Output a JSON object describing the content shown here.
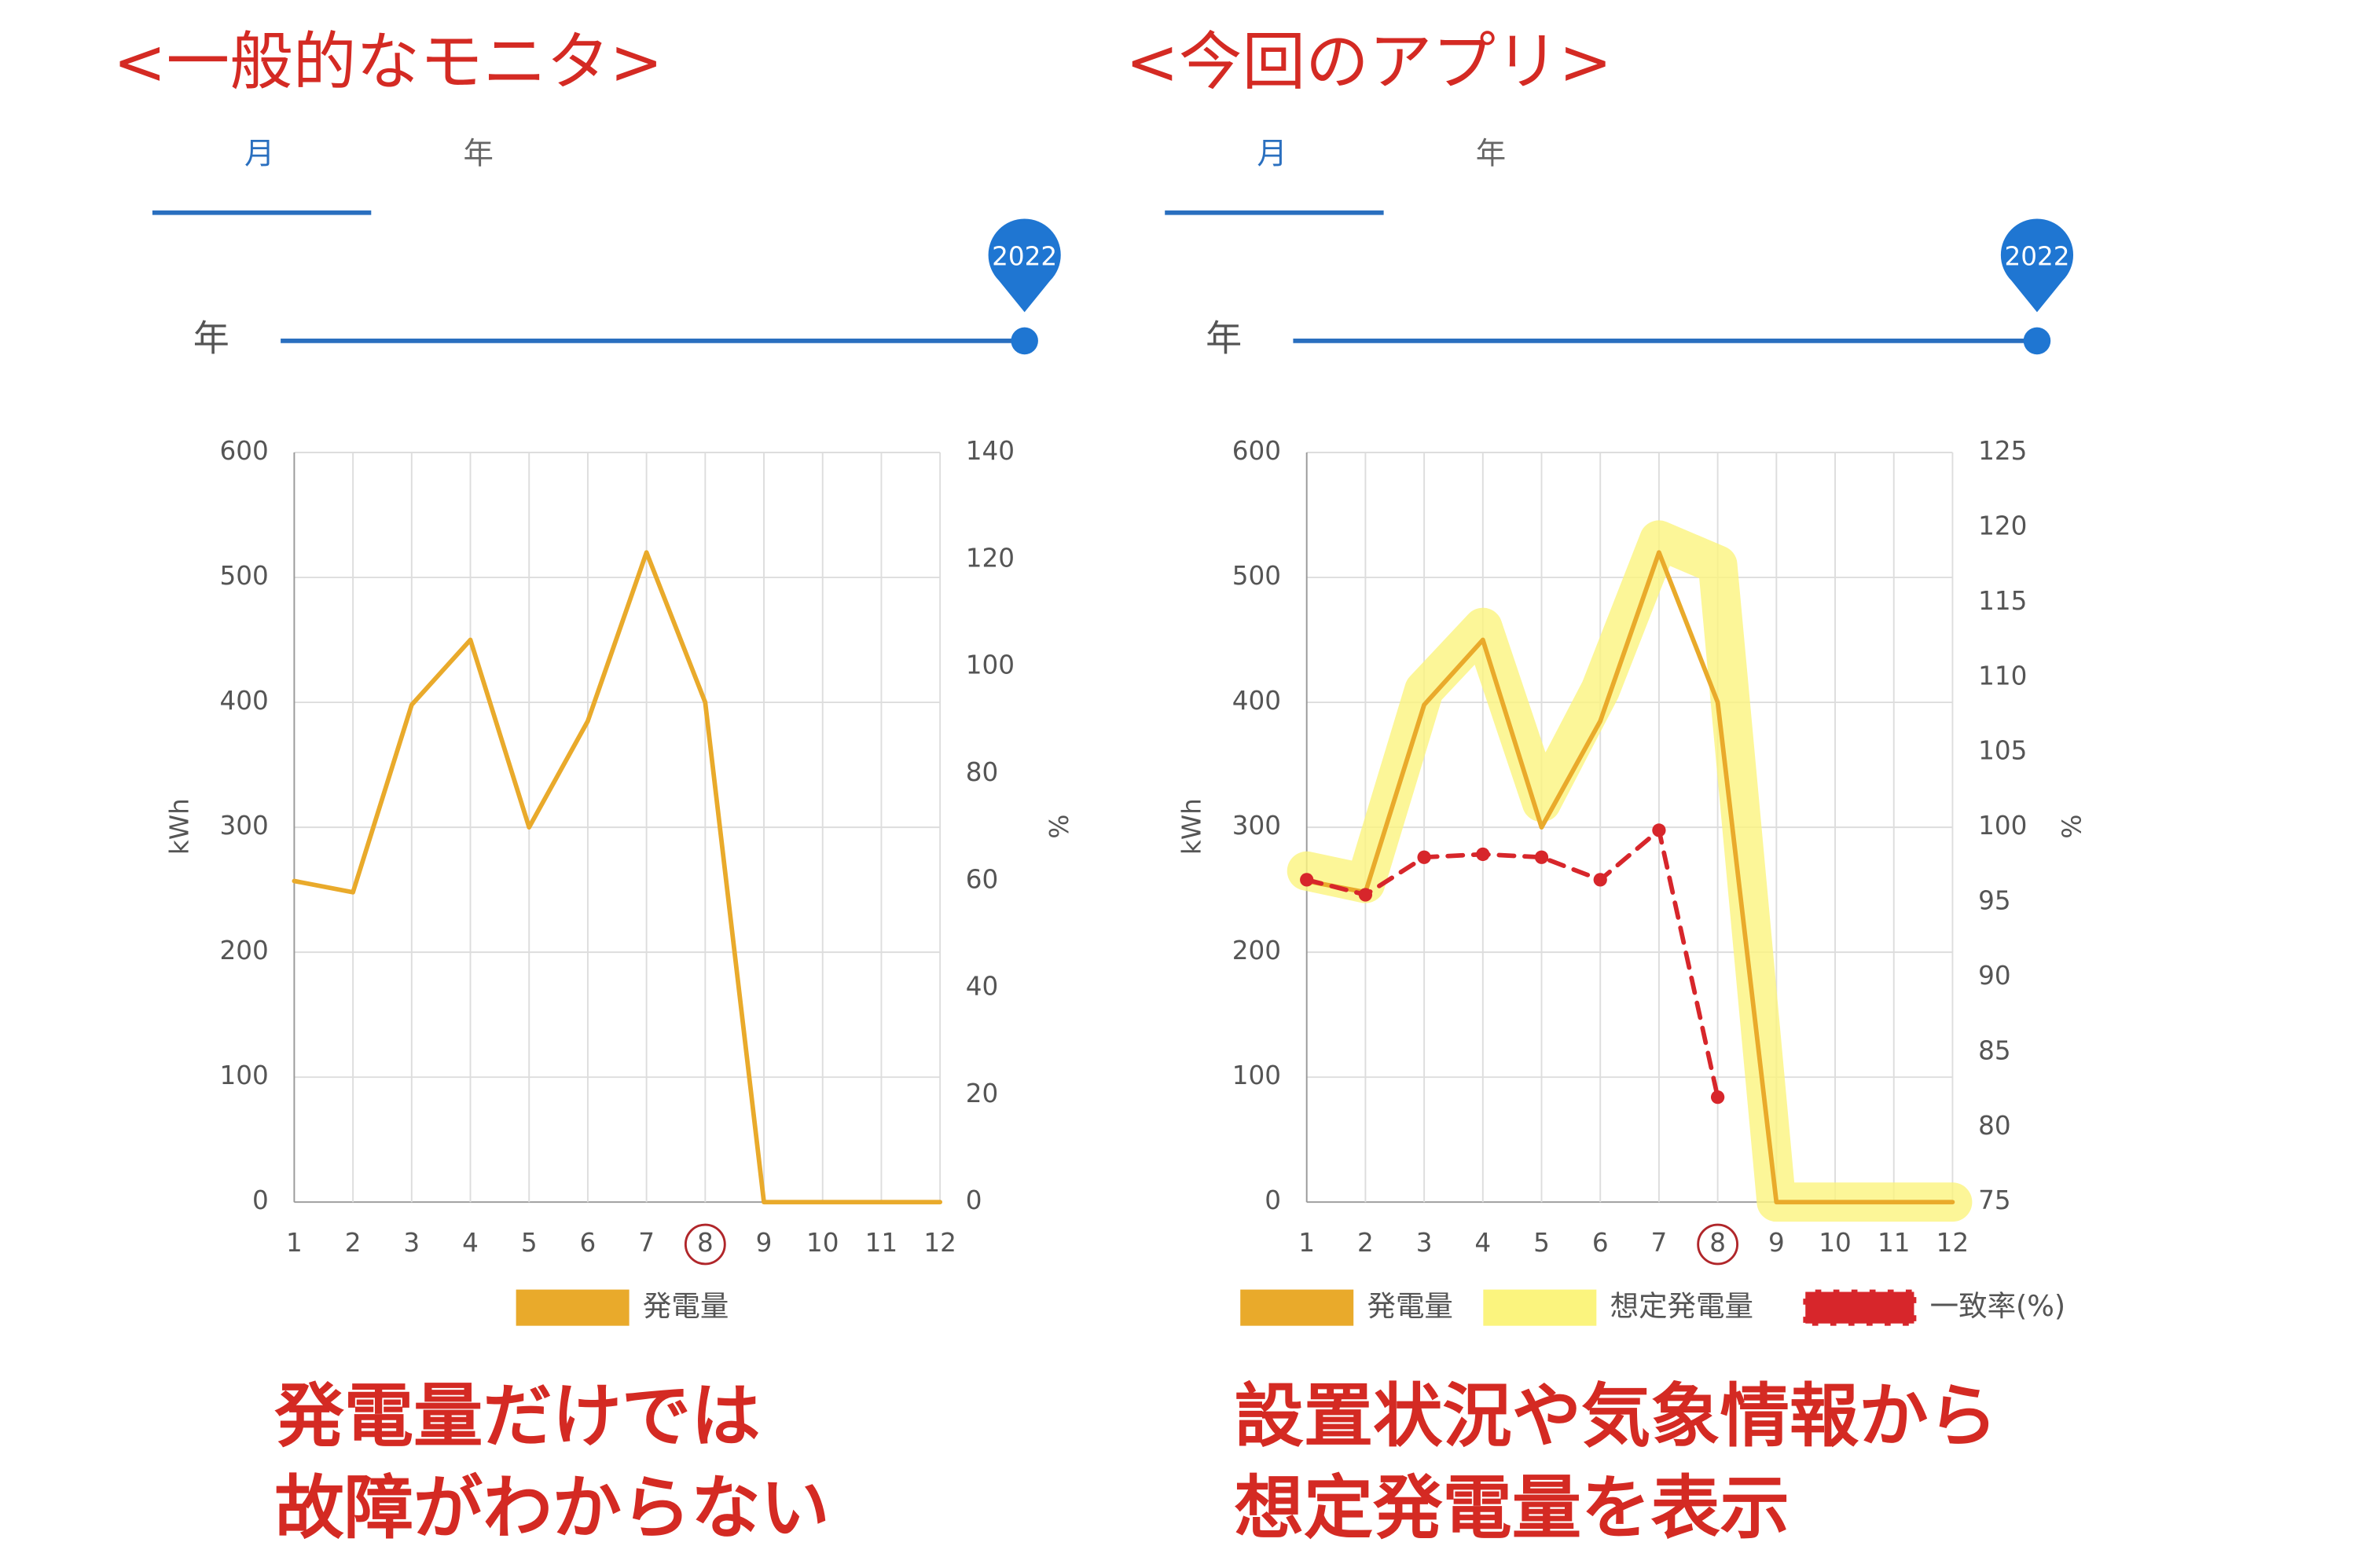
{
  "chart_data": [
    {
      "type": "line",
      "title": "<一般的なモニタ>",
      "tabs": [
        "月",
        "年"
      ],
      "slider_label": "年",
      "slider_value": "2022",
      "categories": [
        "1",
        "2",
        "3",
        "4",
        "5",
        "6",
        "7",
        "8",
        "9",
        "10",
        "11",
        "12"
      ],
      "y_label": "kWh",
      "y2_label": "%",
      "ylim": [
        0,
        600
      ],
      "yticks": [
        0,
        100,
        200,
        300,
        400,
        500,
        600
      ],
      "y2lim": [
        0,
        140
      ],
      "y2ticks": [
        0,
        20,
        40,
        60,
        80,
        100,
        120,
        140
      ],
      "grid": true,
      "series": [
        {
          "name": "発電量",
          "color": "#e9aa2b",
          "values": [
            257,
            248,
            398,
            450,
            300,
            385,
            520,
            400,
            0,
            0,
            0,
            0
          ]
        }
      ],
      "annotation": [
        "発電量だけでは",
        "故障がわからない"
      ]
    },
    {
      "type": "line",
      "title": "<今回のアプリ>",
      "tabs": [
        "月",
        "年"
      ],
      "slider_label": "年",
      "slider_value": "2022",
      "categories": [
        "1",
        "2",
        "3",
        "4",
        "5",
        "6",
        "7",
        "8",
        "9",
        "10",
        "11",
        "12"
      ],
      "y_label": "kWh",
      "y2_label": "%",
      "ylim": [
        0,
        600
      ],
      "yticks": [
        0,
        100,
        200,
        300,
        400,
        500,
        600
      ],
      "y2lim": [
        75,
        125
      ],
      "y2ticks": [
        75,
        80,
        85,
        90,
        95,
        100,
        105,
        110,
        115,
        120,
        125
      ],
      "grid": true,
      "series": [
        {
          "name": "発電量",
          "color": "#e9aa2b",
          "values": [
            257,
            248,
            398,
            450,
            300,
            385,
            520,
            400,
            0,
            0,
            0,
            0
          ]
        },
        {
          "name": "想定発電量",
          "color": "#fbf47e",
          "values": [
            265,
            255,
            410,
            460,
            320,
            410,
            530,
            510,
            0,
            0,
            0,
            0
          ]
        },
        {
          "name": "一致率(%)",
          "color": "#d7262b",
          "axis": "y2",
          "dashed": true,
          "values": [
            96.5,
            95.5,
            98,
            98.2,
            98,
            96.5,
            99.8,
            82,
            null,
            null,
            null,
            null
          ]
        }
      ],
      "annotation": [
        "設置状況や気象情報から",
        "想定発電量を表示"
      ]
    }
  ]
}
